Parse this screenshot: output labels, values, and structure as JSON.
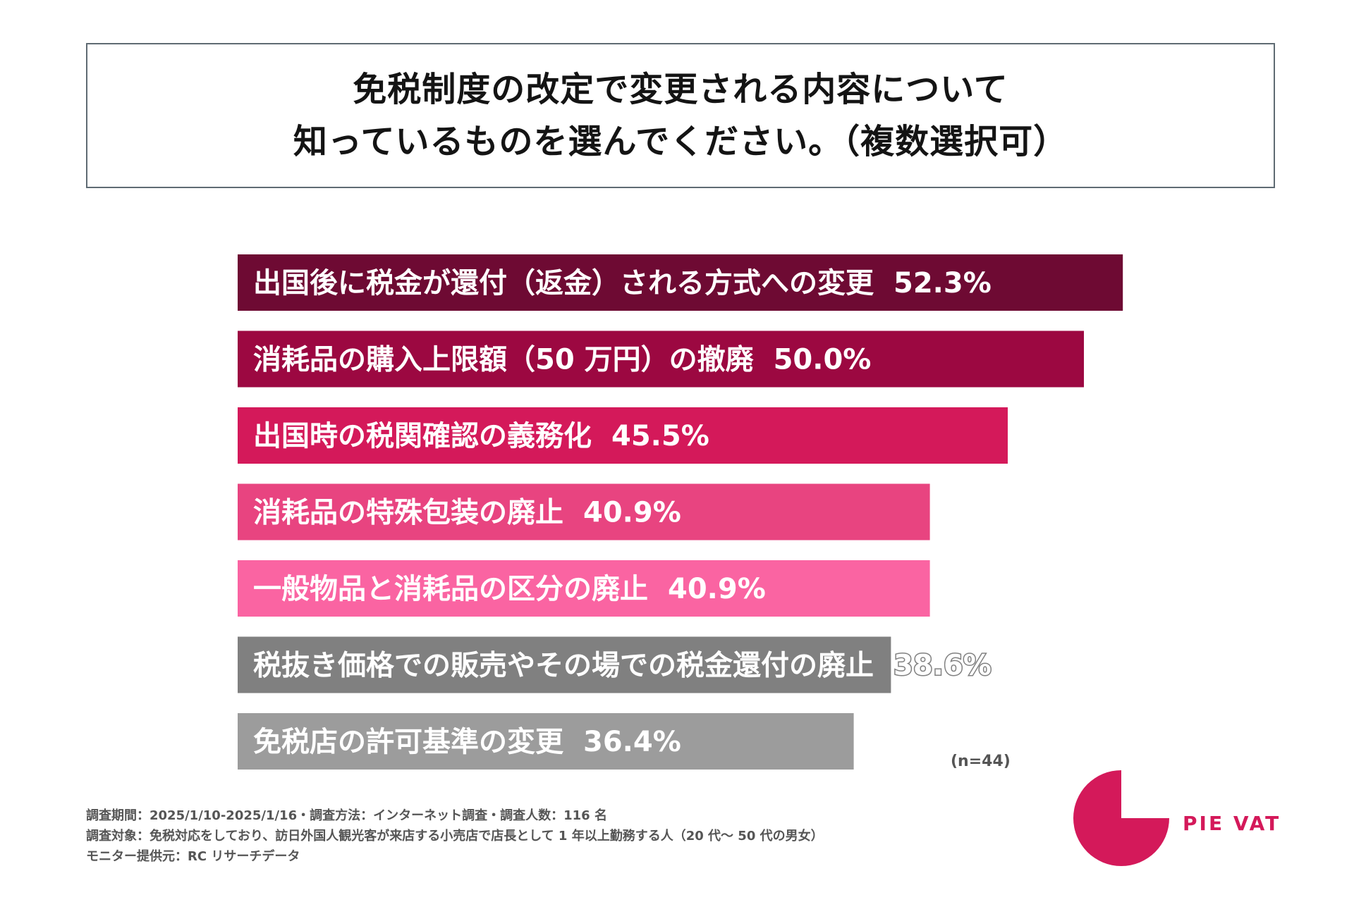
{
  "title": {
    "line1": "免税制度の改定で変更される内容について",
    "line2": "知っているものを選んでください。（複数選択可）"
  },
  "chart_data": {
    "type": "bar",
    "orientation": "horizontal",
    "title": "免税制度の改定で変更される内容について知っているものを選んでください。（複数選択可）",
    "categories": [
      "出国後に税金が還付（返金）される方式への変更",
      "消耗品の購入上限額（50 万円）の撤廃",
      "出国時の税関確認の義務化",
      "消耗品の特殊包装の廃止",
      "一般物品と消耗品の区分の廃止",
      "税抜き価格での販売やその場での税金還付の廃止",
      "免税店の許可基準の変更"
    ],
    "values": [
      52.3,
      50.0,
      45.5,
      40.9,
      40.9,
      38.6,
      36.4
    ],
    "value_labels": [
      "52.3%",
      "50.0%",
      "45.5%",
      "40.9%",
      "40.9%",
      "38.6%",
      "36.4%"
    ],
    "colors": [
      "#6e0a33",
      "#9c0841",
      "#d4195a",
      "#e84480",
      "#fa64a2",
      "#808080",
      "#9c9c9c"
    ],
    "unit": "%",
    "grid": false,
    "legend": "none",
    "sample_size": "(n=44)"
  },
  "notes": [
    "調査期間：2025/1/10-2025/1/16・調査方法：インターネット調査・調査人数：116 名",
    "調査対象：免税対応をしており、訪日外国人観光客が来店する小売店で店長として 1 年以上勤務する人（20 代〜 50 代の男女）",
    "モニター提供元：RC リサーチデータ"
  ],
  "brand": {
    "name": "PIE VAT",
    "color": "#d4195a"
  }
}
